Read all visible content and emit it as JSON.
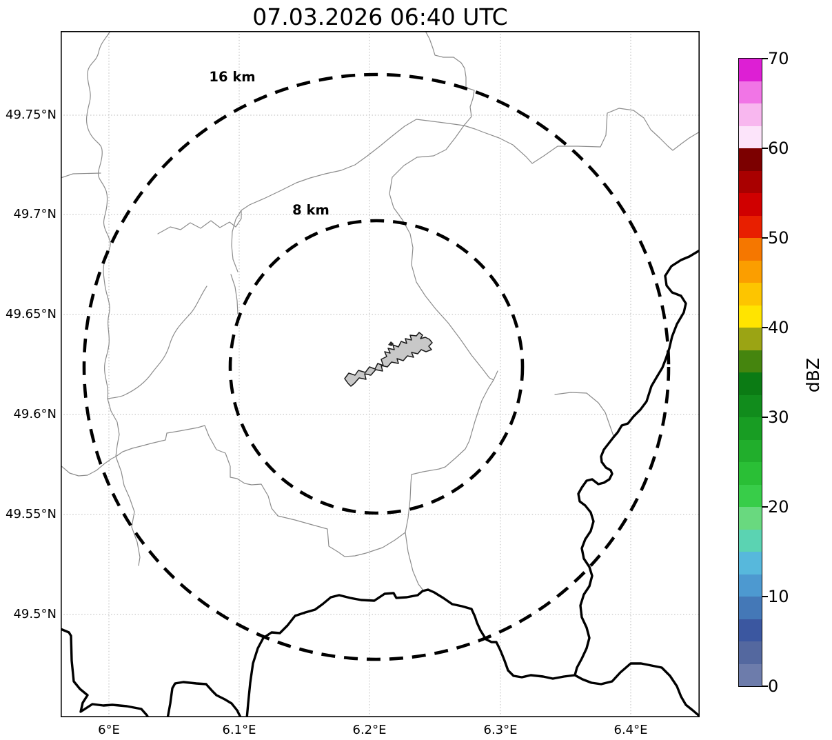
{
  "figure": {
    "title": "07.03.2026 06:40 UTC"
  },
  "map": {
    "range_rings": [
      {
        "label": "16 km",
        "radius_km": 16
      },
      {
        "label": "8 km",
        "radius_km": 8
      }
    ],
    "lon_ticks": [
      "6°E",
      "6.1°E",
      "6.2°E",
      "6.3°E",
      "6.4°E"
    ],
    "lat_ticks": [
      "49.75°N",
      "49.7°N",
      "49.65°N",
      "49.6°N",
      "49.55°N",
      "49.5°N"
    ],
    "feature_colors": {
      "country_border": "#000000",
      "admin_boundary": "#8c8c8c",
      "grid": "#b8b8b8",
      "city_polygon_fill": "#c8c8c8",
      "city_polygon_edge": "#1a1a1a"
    }
  },
  "colorbar": {
    "label": "dBZ",
    "tick_labels": [
      "0",
      "10",
      "20",
      "30",
      "40",
      "50",
      "60",
      "70"
    ],
    "value_min": 0,
    "value_max": 70,
    "colors_bottom_to_top": [
      "#6d7cab",
      "#54689f",
      "#3b57a0",
      "#4478b7",
      "#4d99d0",
      "#57b8dc",
      "#5bd3b2",
      "#69d97f",
      "#38cd49",
      "#2abf36",
      "#21ae2c",
      "#189d23",
      "#118c1c",
      "#0b7b14",
      "#45850e",
      "#9ba414",
      "#ffe400",
      "#fdc500",
      "#fb9e00",
      "#f57700",
      "#e81f00",
      "#d00000",
      "#a90000",
      "#7c0000",
      "#fce4fa",
      "#f8b7ef",
      "#f175e6",
      "#dd1fd4"
    ]
  }
}
